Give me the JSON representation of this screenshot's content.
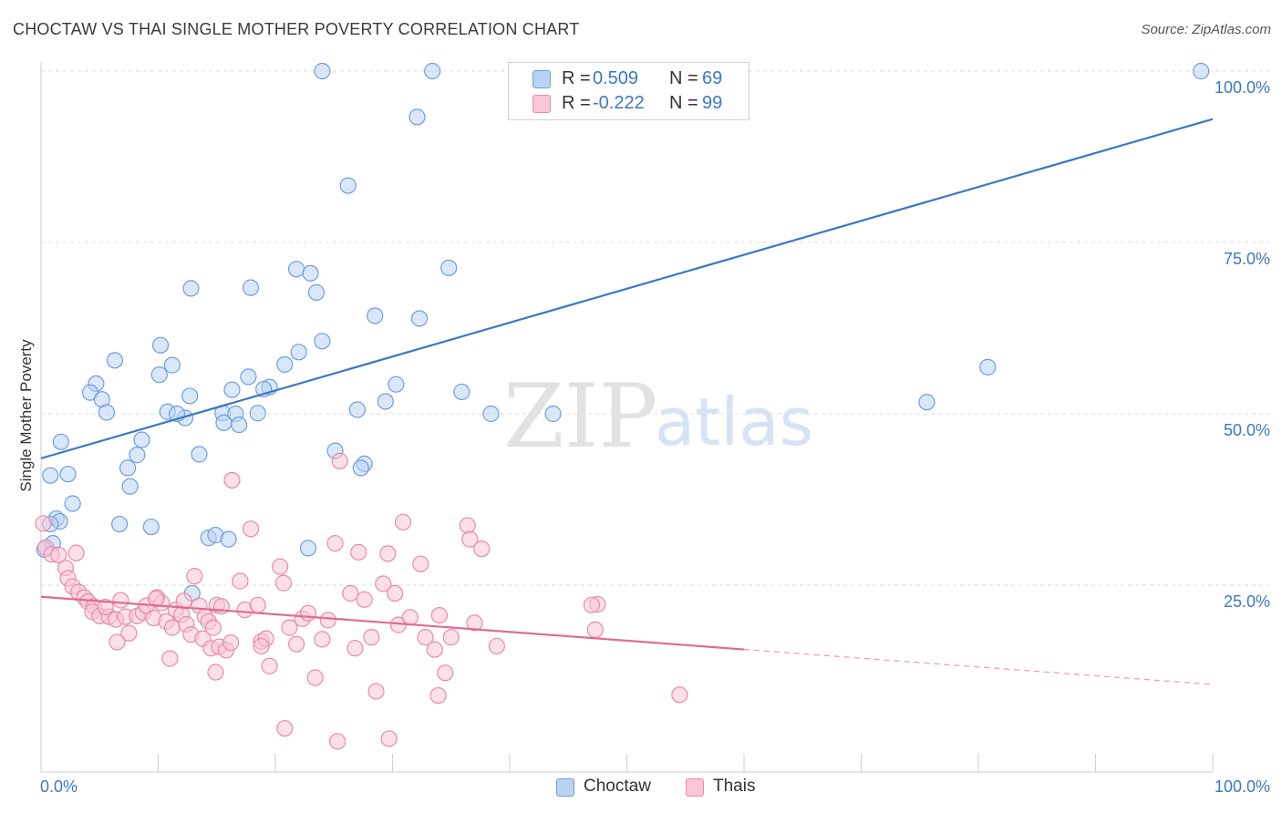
{
  "title": "CHOCTAW VS THAI SINGLE MOTHER POVERTY CORRELATION CHART",
  "source": "Source: ZipAtlas.com",
  "watermark": {
    "zip": "ZIP",
    "atlas": "atlas"
  },
  "legend": {
    "rows": [
      {
        "swatch_color": "#b9d3f3",
        "swatch_border": "#6e9fdc",
        "r_label": "R =",
        "r_value": "0.509",
        "n_label": "N =",
        "n_value": "69"
      },
      {
        "swatch_color": "#f8c6d6",
        "swatch_border": "#e98aa9",
        "r_label": "R =",
        "r_value": "-0.222",
        "n_label": "N =",
        "n_value": "99"
      }
    ]
  },
  "bottom_legend": [
    {
      "label": "Choctaw",
      "color": "#b9d3f3",
      "border": "#6e9fdc"
    },
    {
      "label": "Thais",
      "color": "#f8c6d6",
      "border": "#e98aa9"
    }
  ],
  "chart_data": {
    "type": "scatter",
    "title": "CHOCTAW VS THAI SINGLE MOTHER POVERTY CORRELATION CHART",
    "xlabel": "",
    "ylabel": "Single Mother Poverty",
    "xlim": [
      0,
      100
    ],
    "ylim": [
      0,
      100
    ],
    "x_tick_labels": [
      "0.0%",
      "100.0%"
    ],
    "y_tick_labels": [
      "25.0%",
      "50.0%",
      "75.0%",
      "100.0%"
    ],
    "y_ticks": [
      25,
      50,
      75,
      100
    ],
    "grid": true,
    "legend_position": "top-center",
    "colors": {
      "choctaw": "#3b78c4",
      "thais": "#e06a93"
    },
    "series": [
      {
        "name": "Choctaw",
        "color": "#6e9fdc",
        "fill": "#b9d3f3",
        "trend": {
          "x0": 0,
          "y0": 43.5,
          "x1": 100,
          "y1": 93.0,
          "dashed_from": null
        },
        "points": [
          [
            24.0,
            100
          ],
          [
            33.4,
            100
          ],
          [
            99.0,
            100
          ],
          [
            32.1,
            93.3
          ],
          [
            26.2,
            83.3
          ],
          [
            12.8,
            68.3
          ],
          [
            17.9,
            68.4
          ],
          [
            21.8,
            71.1
          ],
          [
            23.0,
            70.5
          ],
          [
            23.5,
            67.7
          ],
          [
            34.8,
            71.3
          ],
          [
            28.5,
            64.3
          ],
          [
            32.3,
            63.9
          ],
          [
            10.2,
            60.0
          ],
          [
            24.0,
            60.6
          ],
          [
            22.0,
            59.0
          ],
          [
            6.3,
            57.8
          ],
          [
            11.2,
            57.1
          ],
          [
            20.8,
            57.2
          ],
          [
            10.1,
            55.7
          ],
          [
            17.7,
            55.4
          ],
          [
            4.7,
            54.4
          ],
          [
            4.2,
            53.1
          ],
          [
            5.2,
            52.1
          ],
          [
            12.7,
            52.6
          ],
          [
            16.3,
            53.5
          ],
          [
            19.5,
            53.9
          ],
          [
            19.0,
            53.6
          ],
          [
            30.3,
            54.3
          ],
          [
            35.9,
            53.2
          ],
          [
            29.4,
            51.8
          ],
          [
            27.0,
            50.6
          ],
          [
            5.6,
            50.2
          ],
          [
            10.8,
            50.3
          ],
          [
            12.3,
            49.4
          ],
          [
            11.6,
            50.0
          ],
          [
            15.5,
            50.1
          ],
          [
            16.6,
            50.0
          ],
          [
            18.5,
            50.1
          ],
          [
            38.4,
            50.0
          ],
          [
            43.7,
            50.0
          ],
          [
            75.6,
            51.7
          ],
          [
            80.8,
            56.8
          ],
          [
            1.7,
            45.9
          ],
          [
            8.6,
            46.2
          ],
          [
            13.5,
            44.1
          ],
          [
            15.6,
            48.7
          ],
          [
            16.9,
            48.4
          ],
          [
            25.1,
            44.6
          ],
          [
            27.6,
            42.7
          ],
          [
            27.3,
            42.1
          ],
          [
            7.4,
            42.1
          ],
          [
            8.2,
            44.0
          ],
          [
            2.3,
            41.2
          ],
          [
            0.8,
            41.0
          ],
          [
            7.6,
            39.4
          ],
          [
            2.7,
            36.9
          ],
          [
            1.3,
            34.7
          ],
          [
            1.6,
            34.3
          ],
          [
            0.8,
            33.9
          ],
          [
            6.7,
            33.9
          ],
          [
            9.4,
            33.5
          ],
          [
            14.3,
            31.9
          ],
          [
            14.9,
            32.3
          ],
          [
            16.0,
            31.7
          ],
          [
            22.8,
            30.4
          ],
          [
            12.9,
            23.8
          ],
          [
            1.0,
            31.1
          ],
          [
            0.3,
            30.2
          ]
        ]
      },
      {
        "name": "Thais",
        "color": "#e98aa9",
        "fill": "#f8c6d6",
        "trend": {
          "x0": 0,
          "y0": 23.3,
          "x1": 100,
          "y1": 10.5,
          "dashed_from": 60
        },
        "points": [
          [
            0.2,
            34.0
          ],
          [
            0.4,
            30.5
          ],
          [
            0.9,
            29.5
          ],
          [
            1.5,
            29.4
          ],
          [
            3.0,
            29.7
          ],
          [
            2.1,
            27.5
          ],
          [
            2.3,
            26.0
          ],
          [
            2.7,
            24.8
          ],
          [
            3.2,
            24.0
          ],
          [
            3.7,
            23.2
          ],
          [
            4.0,
            22.6
          ],
          [
            4.5,
            21.9
          ],
          [
            4.4,
            21.1
          ],
          [
            5.0,
            20.5
          ],
          [
            5.8,
            20.4
          ],
          [
            5.5,
            21.8
          ],
          [
            6.4,
            20.0
          ],
          [
            6.8,
            22.8
          ],
          [
            7.2,
            20.4
          ],
          [
            7.5,
            18.0
          ],
          [
            6.5,
            16.7
          ],
          [
            8.2,
            20.5
          ],
          [
            8.7,
            21.0
          ],
          [
            9.0,
            22.0
          ],
          [
            9.6,
            20.2
          ],
          [
            9.9,
            23.2
          ],
          [
            10.3,
            22.4
          ],
          [
            10.7,
            19.7
          ],
          [
            11.2,
            18.8
          ],
          [
            11.5,
            21.4
          ],
          [
            11.0,
            14.3
          ],
          [
            12.0,
            20.7
          ],
          [
            12.4,
            19.3
          ],
          [
            12.8,
            17.8
          ],
          [
            13.1,
            26.3
          ],
          [
            13.5,
            22.0
          ],
          [
            14.0,
            20.4
          ],
          [
            14.3,
            19.7
          ],
          [
            14.7,
            18.8
          ],
          [
            15.0,
            22.1
          ],
          [
            15.4,
            21.9
          ],
          [
            13.8,
            17.2
          ],
          [
            14.5,
            15.8
          ],
          [
            15.2,
            16.0
          ],
          [
            15.8,
            15.5
          ],
          [
            16.2,
            16.6
          ],
          [
            14.9,
            12.3
          ],
          [
            17.0,
            25.6
          ],
          [
            17.4,
            21.4
          ],
          [
            17.9,
            33.2
          ],
          [
            18.5,
            22.1
          ],
          [
            18.8,
            16.8
          ],
          [
            19.2,
            17.2
          ],
          [
            19.5,
            13.2
          ],
          [
            20.4,
            27.7
          ],
          [
            20.7,
            25.3
          ],
          [
            21.2,
            18.8
          ],
          [
            21.8,
            16.4
          ],
          [
            22.3,
            20.1
          ],
          [
            22.8,
            20.9
          ],
          [
            23.4,
            11.5
          ],
          [
            24.0,
            17.1
          ],
          [
            24.5,
            19.9
          ],
          [
            25.1,
            31.1
          ],
          [
            25.5,
            43.1
          ],
          [
            26.4,
            23.8
          ],
          [
            26.8,
            15.8
          ],
          [
            27.1,
            29.8
          ],
          [
            27.6,
            22.9
          ],
          [
            28.2,
            17.4
          ],
          [
            28.6,
            9.5
          ],
          [
            29.2,
            25.2
          ],
          [
            29.6,
            29.6
          ],
          [
            30.2,
            23.8
          ],
          [
            30.5,
            19.2
          ],
          [
            30.9,
            34.2
          ],
          [
            31.5,
            20.3
          ],
          [
            32.4,
            28.1
          ],
          [
            32.8,
            17.4
          ],
          [
            33.6,
            15.6
          ],
          [
            33.9,
            8.9
          ],
          [
            34.5,
            12.2
          ],
          [
            35.0,
            17.4
          ],
          [
            36.4,
            33.7
          ],
          [
            36.6,
            31.7
          ],
          [
            37.0,
            19.5
          ],
          [
            38.9,
            16.1
          ],
          [
            37.6,
            30.3
          ],
          [
            47.5,
            22.2
          ],
          [
            47.0,
            22.1
          ],
          [
            47.3,
            18.5
          ],
          [
            54.5,
            9.0
          ],
          [
            16.3,
            40.3
          ],
          [
            20.8,
            4.1
          ],
          [
            25.3,
            2.2
          ],
          [
            29.7,
            2.6
          ],
          [
            9.8,
            23.0
          ],
          [
            12.2,
            22.7
          ],
          [
            18.8,
            16.1
          ],
          [
            34.0,
            20.6
          ]
        ]
      }
    ]
  }
}
